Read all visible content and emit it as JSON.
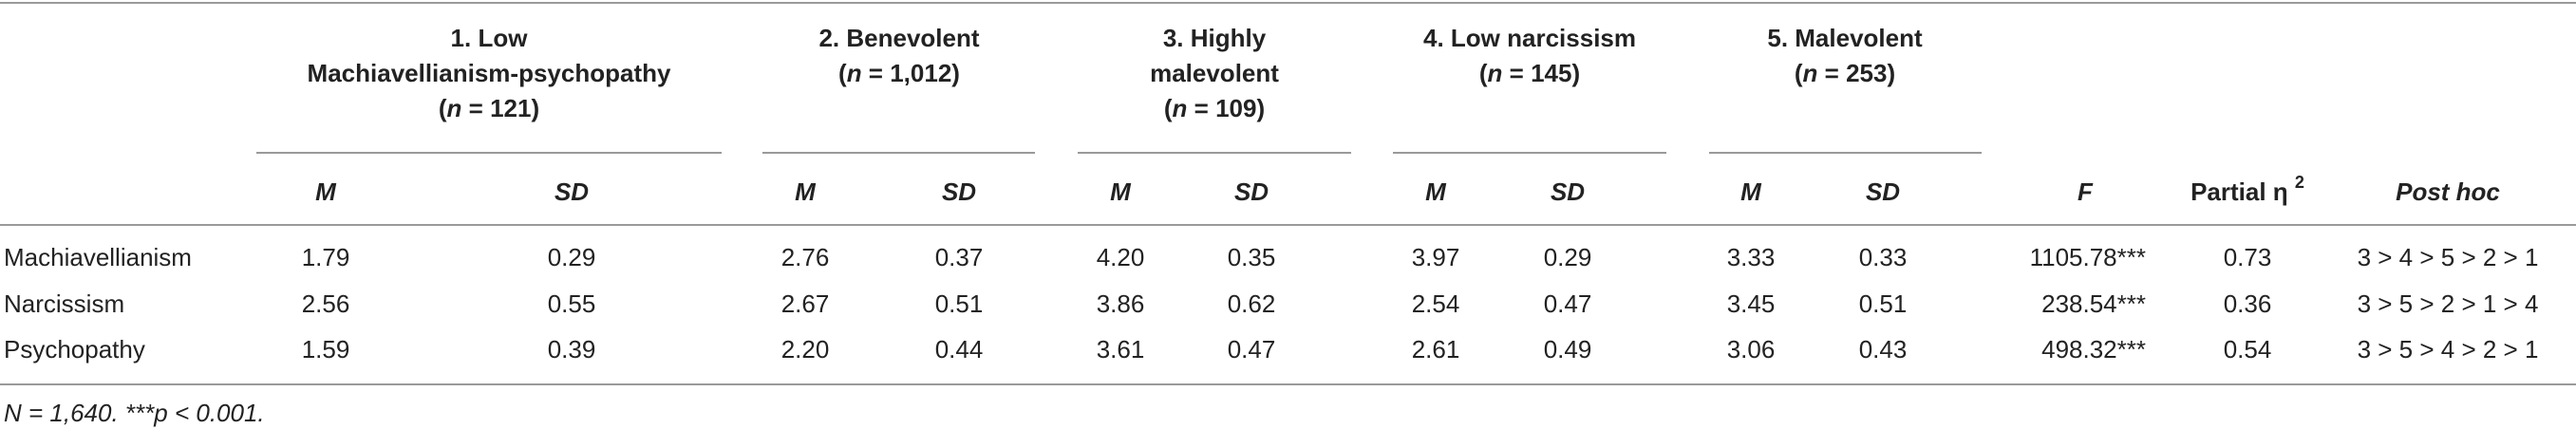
{
  "groups": [
    {
      "num_name": "1. Low",
      "line2": "Machiavellianism-psychopathy",
      "n": "121"
    },
    {
      "num_name": "2. Benevolent",
      "n": "1,012"
    },
    {
      "num_name": "3. Highly",
      "line2": "malevolent",
      "n": "109"
    },
    {
      "num_name": "4. Low narcissism",
      "n": "145"
    },
    {
      "num_name": "5. Malevolent",
      "n": "253"
    }
  ],
  "n_label": "n",
  "n_eq": " = ",
  "open_paren": "(",
  "close_paren": ")",
  "subheaders": {
    "m": "M",
    "sd": "SD",
    "f": "F",
    "partial_eta": "Partial η ",
    "eta_sup": "2",
    "post_hoc": "Post hoc"
  },
  "rows": [
    {
      "label": "Machiavellianism",
      "cells": [
        "1.79",
        "0.29",
        "2.76",
        "0.37",
        "4.20",
        "0.35",
        "3.97",
        "0.29",
        "3.33",
        "0.33"
      ],
      "f": "1105.78***",
      "eta": "0.73",
      "post_hoc": "3 > 4 > 5 > 2 > 1"
    },
    {
      "label": "Narcissism",
      "cells": [
        "2.56",
        "0.55",
        "2.67",
        "0.51",
        "3.86",
        "0.62",
        "2.54",
        "0.47",
        "3.45",
        "0.51"
      ],
      "f": "238.54***",
      "eta": "0.36",
      "post_hoc": "3 > 5 > 2 > 1 > 4"
    },
    {
      "label": "Psychopathy",
      "cells": [
        "1.59",
        "0.39",
        "2.20",
        "0.44",
        "3.61",
        "0.47",
        "2.61",
        "0.49",
        "3.06",
        "0.43"
      ],
      "f": "498.32***",
      "eta": "0.54",
      "post_hoc": "3 > 5 > 4 > 2 > 1"
    }
  ],
  "footnote": "N = 1,640. ***p < 0.001."
}
